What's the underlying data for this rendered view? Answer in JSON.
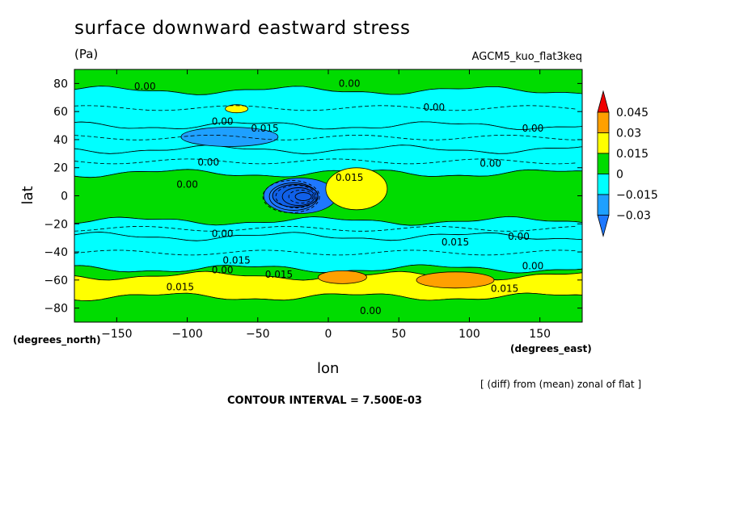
{
  "header": {
    "title": "surface downward eastward stress",
    "units": "(Pa)",
    "dataset": "AGCM5_kuo_flat3keq"
  },
  "footer": {
    "x_units": "(degrees_east)",
    "y_units": "(degrees_north)",
    "diff_note": "[ (diff) from (mean) zonal of flat ]",
    "contour_interval": "CONTOUR INTERVAL = 7.500E-03"
  },
  "colors": {
    "lt_-0.03": "#1e78ff",
    "-0.03_-0.015": "#1ea0ff",
    "-0.015_0": "#00ffff",
    "0_0.015": "#00dc00",
    "0.015_0.03": "#ffff00",
    "0.03_0.045": "#ffa000",
    "gt_0.045": "#f00000",
    "dark_core": "#1060e8"
  },
  "chart_data": {
    "type": "heatmap",
    "title": "surface downward eastward stress",
    "xlabel": "lon",
    "ylabel": "lat",
    "xlim": [
      -180,
      180
    ],
    "ylim": [
      -90,
      90
    ],
    "xticks": [
      -150,
      -100,
      -50,
      0,
      50,
      100,
      150
    ],
    "yticks": [
      80,
      60,
      40,
      20,
      0,
      -20,
      -40,
      -60,
      -80
    ],
    "colorbar": {
      "levels": [
        -0.03,
        -0.015,
        0,
        0.015,
        0.03,
        0.045
      ],
      "labels": [
        "0.045",
        "0.03",
        "0.015",
        "0",
        "−0.015",
        "−0.03"
      ]
    },
    "zonal_bands": [
      {
        "lat_from": 90,
        "lat_to": 75,
        "value": 0.0075
      },
      {
        "lat_from": 75,
        "lat_to": 50,
        "value": -0.0075
      },
      {
        "lat_from": 50,
        "lat_to": 33,
        "value": -0.012
      },
      {
        "lat_from": 33,
        "lat_to": 16,
        "value": -0.0075
      },
      {
        "lat_from": 16,
        "lat_to": -18,
        "value": 0.0075
      },
      {
        "lat_from": -18,
        "lat_to": -29,
        "value": -0.0075
      },
      {
        "lat_from": -29,
        "lat_to": -52,
        "value": -0.012
      },
      {
        "lat_from": -52,
        "lat_to": -57,
        "value": 0.0075
      },
      {
        "lat_from": -57,
        "lat_to": -72,
        "value": 0.02
      },
      {
        "lat_from": -72,
        "lat_to": -90,
        "value": 0.0075
      }
    ],
    "features": [
      {
        "lon": -20,
        "lat": 0,
        "value": -0.035
      },
      {
        "lon": 20,
        "lat": 5,
        "value": 0.02
      },
      {
        "lon": -70,
        "lat": 42,
        "value": -0.02
      },
      {
        "lon": 90,
        "lat": -60,
        "value": 0.035
      },
      {
        "lon": 10,
        "lat": -58,
        "value": 0.035
      },
      {
        "lon": -65,
        "lat": 62,
        "value": 0.02
      }
    ],
    "contour_labels": [
      {
        "lon": -130,
        "lat": 78,
        "text": "0.00"
      },
      {
        "lon": 15,
        "lat": 80,
        "text": "0.00"
      },
      {
        "lon": 75,
        "lat": 63,
        "text": "0.00"
      },
      {
        "lon": -75,
        "lat": 53,
        "text": "0.00"
      },
      {
        "lon": -45,
        "lat": 48,
        "text": "0.015"
      },
      {
        "lon": 145,
        "lat": 48,
        "text": "0.00"
      },
      {
        "lon": -85,
        "lat": 24,
        "text": "0.00"
      },
      {
        "lon": 115,
        "lat": 23,
        "text": "0.00"
      },
      {
        "lon": 15,
        "lat": 13,
        "text": "0.015"
      },
      {
        "lon": -100,
        "lat": 8,
        "text": "0.00"
      },
      {
        "lon": -75,
        "lat": -27,
        "text": "0.00"
      },
      {
        "lon": 90,
        "lat": -33,
        "text": "0.015"
      },
      {
        "lon": 135,
        "lat": -29,
        "text": "0.00"
      },
      {
        "lon": -65,
        "lat": -46,
        "text": "0.015"
      },
      {
        "lon": -75,
        "lat": -53,
        "text": "0.00"
      },
      {
        "lon": -35,
        "lat": -56,
        "text": "0.015"
      },
      {
        "lon": 145,
        "lat": -50,
        "text": "0.00"
      },
      {
        "lon": -105,
        "lat": -65,
        "text": "0.015"
      },
      {
        "lon": 125,
        "lat": -66,
        "text": "0.015"
      },
      {
        "lon": 30,
        "lat": -82,
        "text": "0.00"
      }
    ]
  }
}
